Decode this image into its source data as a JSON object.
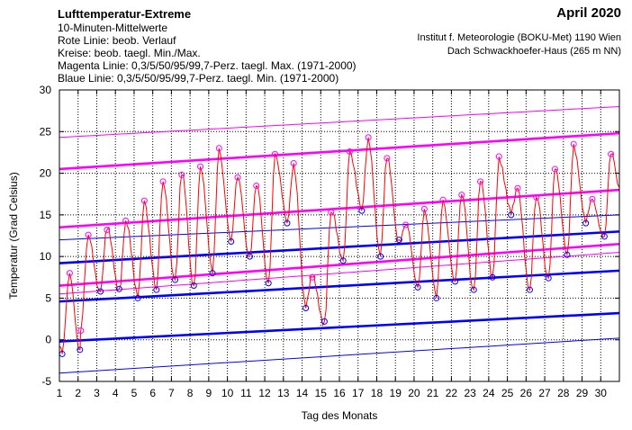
{
  "header": {
    "title": "Lufttemperatur-Extreme",
    "lines": [
      "10-Minuten-Mittelwerte",
      "Rote Linie: beob. Verlauf",
      "Kreise: beob. taegl. Min./Max.",
      "Magenta Linie: 0,3/5/50/95/99,7-Perz. taegl. Max. (1971-2000)",
      "Blaue Linie: 0,3/5/50/95/99,7-Perz. taegl. Min. (1971-2000)"
    ],
    "month": "April 2020",
    "institute": "Institut f. Meteorologie (BOKU-Met) 1190 Wien",
    "location": "Dach Schwackhoefer-Haus (265 m NN)"
  },
  "colors": {
    "observed": "#ff0000",
    "max_percentiles": "#ff00ff",
    "min_percentiles": "#0000ff",
    "grid": "#000000"
  },
  "chart_data": {
    "type": "line",
    "xlabel": "Tag des Monats",
    "ylabel": "Temperatur (Grad Celsius)",
    "xlim": [
      1,
      31
    ],
    "ylim": [
      -5,
      30
    ],
    "x_ticks": [
      1,
      2,
      3,
      4,
      5,
      6,
      7,
      8,
      9,
      10,
      11,
      12,
      13,
      14,
      15,
      16,
      17,
      18,
      19,
      20,
      21,
      22,
      23,
      24,
      25,
      26,
      27,
      28,
      29,
      30
    ],
    "y_ticks": [
      -5,
      0,
      5,
      10,
      15,
      20,
      25,
      30
    ],
    "grid": true,
    "max_percentiles": [
      {
        "name": "0,3",
        "start": 5.5,
        "end": 10.5,
        "weight": "thin"
      },
      {
        "name": "5",
        "start": 6.5,
        "end": 11.5,
        "weight": "thick"
      },
      {
        "name": "50",
        "start": 13.5,
        "end": 18.0,
        "weight": "thick"
      },
      {
        "name": "95",
        "start": 20.5,
        "end": 24.8,
        "weight": "thick"
      },
      {
        "name": "99,7",
        "start": 24.3,
        "end": 28.0,
        "weight": "thin"
      }
    ],
    "min_percentiles": [
      {
        "name": "0,3",
        "start": -4.0,
        "end": 0.2,
        "weight": "thin"
      },
      {
        "name": "5",
        "start": -0.2,
        "end": 3.2,
        "weight": "thick"
      },
      {
        "name": "50",
        "start": 4.6,
        "end": 8.3,
        "weight": "thick"
      },
      {
        "name": "95",
        "start": 9.2,
        "end": 13.0,
        "weight": "thick"
      },
      {
        "name": "99,7",
        "start": 12.0,
        "end": 15.0,
        "weight": "thin"
      }
    ],
    "daily_min": [
      {
        "x": 1.15,
        "y": -1.7
      },
      {
        "x": 2.1,
        "y": -1.2
      },
      {
        "x": 3.2,
        "y": 5.8
      },
      {
        "x": 4.2,
        "y": 6.1
      },
      {
        "x": 5.2,
        "y": 5.0
      },
      {
        "x": 6.2,
        "y": 6.0
      },
      {
        "x": 7.2,
        "y": 7.2
      },
      {
        "x": 8.2,
        "y": 6.5
      },
      {
        "x": 9.2,
        "y": 8.0
      },
      {
        "x": 10.2,
        "y": 11.8
      },
      {
        "x": 11.2,
        "y": 10.0
      },
      {
        "x": 12.2,
        "y": 6.8
      },
      {
        "x": 13.2,
        "y": 14.0
      },
      {
        "x": 14.2,
        "y": 3.8
      },
      {
        "x": 15.2,
        "y": 2.2
      },
      {
        "x": 16.2,
        "y": 9.5
      },
      {
        "x": 17.2,
        "y": 15.5
      },
      {
        "x": 18.2,
        "y": 10.0
      },
      {
        "x": 19.2,
        "y": 12.0
      },
      {
        "x": 20.2,
        "y": 6.3
      },
      {
        "x": 21.2,
        "y": 5.0
      },
      {
        "x": 22.2,
        "y": 7.0
      },
      {
        "x": 23.2,
        "y": 6.0
      },
      {
        "x": 24.2,
        "y": 7.5
      },
      {
        "x": 25.2,
        "y": 15.0
      },
      {
        "x": 26.2,
        "y": 6.0
      },
      {
        "x": 27.2,
        "y": 7.4
      },
      {
        "x": 28.2,
        "y": 10.2
      },
      {
        "x": 29.2,
        "y": 14.0
      },
      {
        "x": 30.2,
        "y": 12.4
      }
    ],
    "daily_max": [
      {
        "x": 1.55,
        "y": 8.0
      },
      {
        "x": 2.15,
        "y": 1.1
      },
      {
        "x": 2.55,
        "y": 12.6
      },
      {
        "x": 3.55,
        "y": 13.2
      },
      {
        "x": 4.55,
        "y": 14.3
      },
      {
        "x": 5.55,
        "y": 16.7
      },
      {
        "x": 6.55,
        "y": 19.0
      },
      {
        "x": 7.55,
        "y": 19.8
      },
      {
        "x": 8.55,
        "y": 20.8
      },
      {
        "x": 9.55,
        "y": 23.0
      },
      {
        "x": 10.55,
        "y": 19.5
      },
      {
        "x": 11.55,
        "y": 18.5
      },
      {
        "x": 12.55,
        "y": 22.3
      },
      {
        "x": 13.55,
        "y": 21.2
      },
      {
        "x": 14.55,
        "y": 7.5
      },
      {
        "x": 15.55,
        "y": 15.3
      },
      {
        "x": 16.55,
        "y": 22.6
      },
      {
        "x": 17.55,
        "y": 24.3
      },
      {
        "x": 18.55,
        "y": 21.8
      },
      {
        "x": 19.55,
        "y": 13.8
      },
      {
        "x": 20.55,
        "y": 15.7
      },
      {
        "x": 21.55,
        "y": 16.8
      },
      {
        "x": 22.55,
        "y": 17.4
      },
      {
        "x": 23.55,
        "y": 19.0
      },
      {
        "x": 24.55,
        "y": 22.0
      },
      {
        "x": 25.55,
        "y": 18.2
      },
      {
        "x": 26.55,
        "y": 17.1
      },
      {
        "x": 27.55,
        "y": 20.5
      },
      {
        "x": 28.55,
        "y": 23.5
      },
      {
        "x": 29.55,
        "y": 16.9
      },
      {
        "x": 30.55,
        "y": 22.3
      }
    ]
  }
}
